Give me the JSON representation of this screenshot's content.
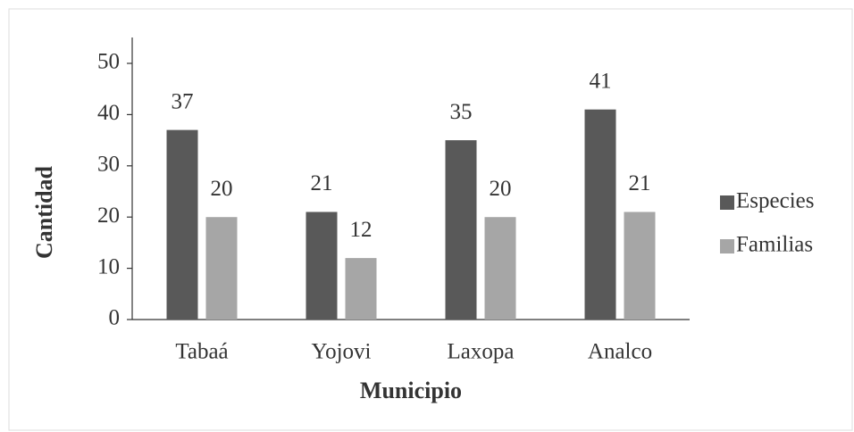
{
  "chart_data": {
    "type": "bar",
    "x_label": "Municipio",
    "y_label": "Cantidad",
    "categories": [
      "Tabaá",
      "Yojovi",
      "Laxopa",
      "Analco"
    ],
    "series": [
      {
        "name": "Especies",
        "color": "#595959",
        "values": [
          37,
          21,
          35,
          41
        ]
      },
      {
        "name": "Familias",
        "color": "#a6a6a6",
        "values": [
          20,
          12,
          20,
          21
        ]
      }
    ],
    "ylim": [
      0,
      50
    ],
    "yticks": [
      0,
      10,
      20,
      30,
      40,
      50
    ],
    "grid": false,
    "legend": "right"
  }
}
